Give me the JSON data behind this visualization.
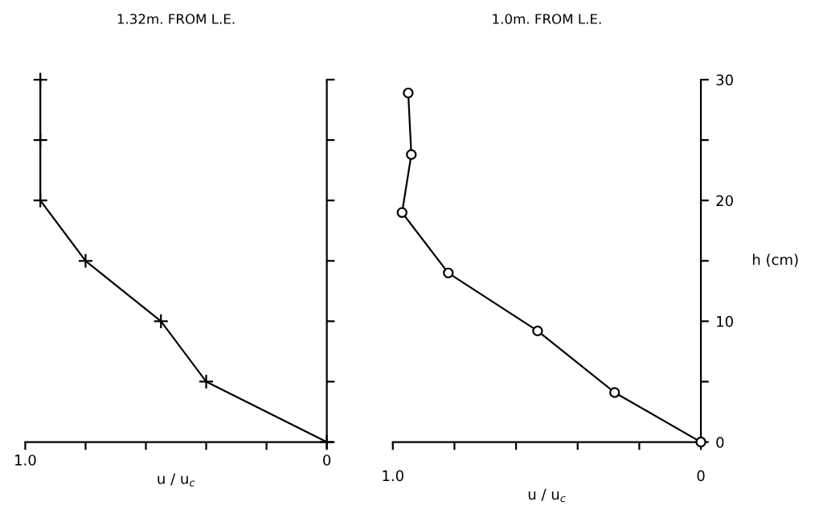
{
  "chart_data": [
    {
      "type": "line",
      "title": "1.32m. FROM L.E.",
      "xlabel": "u / u$_{c}$",
      "marker": "cross",
      "x": [
        0,
        0.4,
        0.55,
        0.8,
        0.95,
        0.95,
        0.95
      ],
      "values": [
        0,
        5,
        10,
        15,
        20,
        25,
        30
      ],
      "color": "#000000",
      "xlim": [
        1.0,
        0
      ],
      "xticks": [
        {
          "value": 1.0,
          "label": "1.0"
        },
        {
          "value": 0.8,
          "label": null
        },
        {
          "value": 0.6,
          "label": null
        },
        {
          "value": 0.4,
          "label": null
        },
        {
          "value": 0.2,
          "label": null
        },
        0
      ],
      "ylim": [
        0,
        30
      ],
      "yticks": [
        0,
        5,
        10,
        15,
        20,
        25,
        30
      ],
      "tick_labels": "x",
      "grid": false,
      "legend": false
    },
    {
      "type": "line",
      "title": "1.0m. FROM L.E.",
      "xlabel": "u / u$_{c}$",
      "ylabel": "h (cm)",
      "marker": "circle",
      "x": [
        0,
        0.28,
        0.53,
        0.82,
        0.97,
        0.94,
        0.95
      ],
      "values": [
        0,
        4.1,
        9.2,
        14.0,
        19.0,
        23.8,
        28.9
      ],
      "color": "#000000",
      "xlim": [
        1.0,
        0
      ],
      "xticks": [
        {
          "value": 1.0,
          "label": "1.0"
        },
        {
          "value": 0.8,
          "label": null
        },
        {
          "value": 0.6,
          "label": null
        },
        {
          "value": 0.4,
          "label": null
        },
        {
          "value": 0.2,
          "label": null
        },
        0
      ],
      "ylim": [
        0,
        30
      ],
      "yticks": [
        0,
        {
          "value": 5,
          "label": null
        },
        10,
        {
          "value": 15,
          "label": null
        },
        20,
        {
          "value": 25,
          "label": null
        },
        30
      ],
      "grid": false,
      "legend": false
    }
  ]
}
